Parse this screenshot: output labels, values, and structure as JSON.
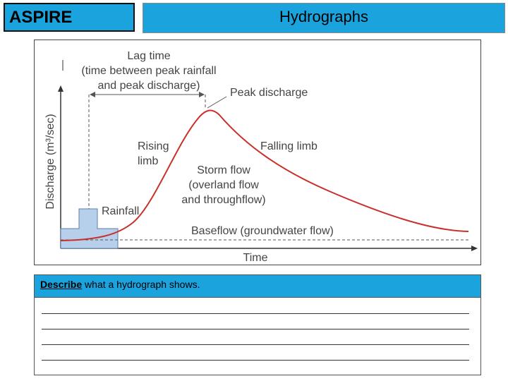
{
  "header": {
    "brand": "ASPIRE",
    "title": "Hydrographs"
  },
  "diagram": {
    "y_axis_label": "Discharge (m³/sec)",
    "x_axis_label": "Time",
    "lag_time_line1": "Lag time",
    "lag_time_line2": "(time between peak rainfall",
    "lag_time_line3": "and peak discharge)",
    "peak_discharge": "Peak discharge",
    "rising_limb_line1": "Rising",
    "rising_limb_line2": "limb",
    "falling_limb": "Falling limb",
    "storm_flow_line1": "Storm flow",
    "storm_flow_line2": "(overland flow",
    "storm_flow_line3": "and throughflow)",
    "rainfall": "Rainfall",
    "baseflow": "Baseflow (groundwater flow)"
  },
  "question": {
    "keyword": "Describe",
    "text": " what a hydrograph shows."
  },
  "answer_lines": 4,
  "colors": {
    "header_blue": "#1aa3dd",
    "curve_red": "#c8312b",
    "rainfall_fill": "#b7cfea",
    "text_grey": "#444444"
  }
}
